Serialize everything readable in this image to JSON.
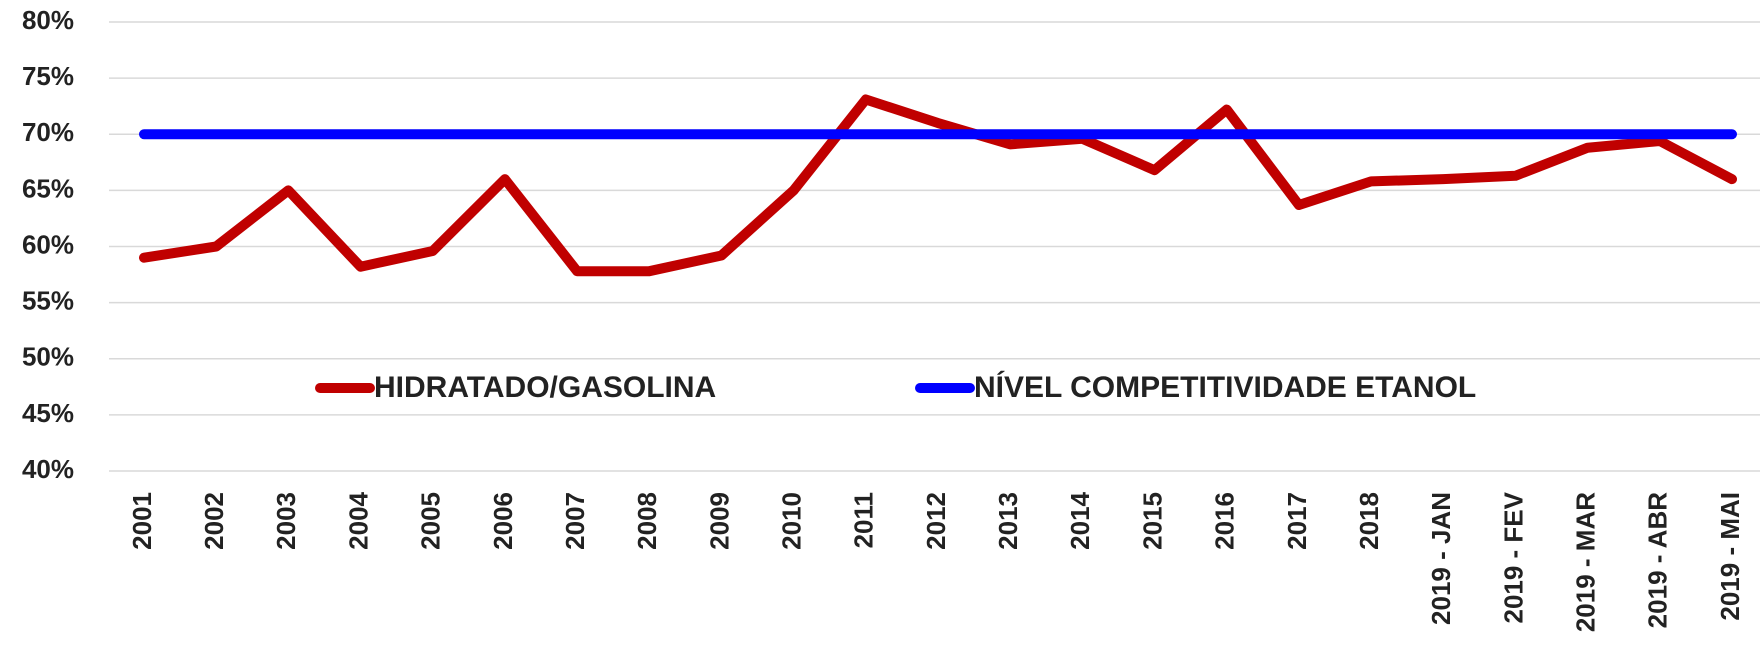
{
  "chart_data": {
    "type": "line",
    "categories": [
      "2001",
      "2002",
      "2003",
      "2004",
      "2005",
      "2006",
      "2007",
      "2008",
      "2009",
      "2010",
      "2011",
      "2012",
      "2013",
      "2014",
      "2015",
      "2016",
      "2017",
      "2018",
      "2019 - JAN",
      "2019 - FEV",
      "2019 - MAR",
      "2019 - ABR",
      "2019 - MAI"
    ],
    "series": [
      {
        "name": "HIDRATADO/GASOLINA",
        "color": "#c00000",
        "values": [
          59,
          60,
          65,
          58.2,
          59.6,
          66,
          57.8,
          57.8,
          59.2,
          65,
          73.1,
          71,
          69.1,
          69.6,
          66.8,
          72.2,
          63.7,
          65.8,
          66,
          66.3,
          68.8,
          69.4,
          66
        ]
      },
      {
        "name": "NÍVEL COMPETITIVIDADE ETANOL",
        "color": "#0000ff",
        "values": [
          70,
          70,
          70,
          70,
          70,
          70,
          70,
          70,
          70,
          70,
          70,
          70,
          70,
          70,
          70,
          70,
          70,
          70,
          70,
          70,
          70,
          70,
          70
        ]
      }
    ],
    "ylim": [
      40,
      80
    ],
    "yticks": [
      {
        "value": 40,
        "label": "40%"
      },
      {
        "value": 45,
        "label": "45%"
      },
      {
        "value": 50,
        "label": "50%"
      },
      {
        "value": 55,
        "label": "55%"
      },
      {
        "value": 60,
        "label": "60%"
      },
      {
        "value": 65,
        "label": "65%"
      },
      {
        "value": 70,
        "label": "70%"
      },
      {
        "value": 75,
        "label": "75%"
      },
      {
        "value": 80,
        "label": "80%"
      }
    ],
    "grid": true
  }
}
